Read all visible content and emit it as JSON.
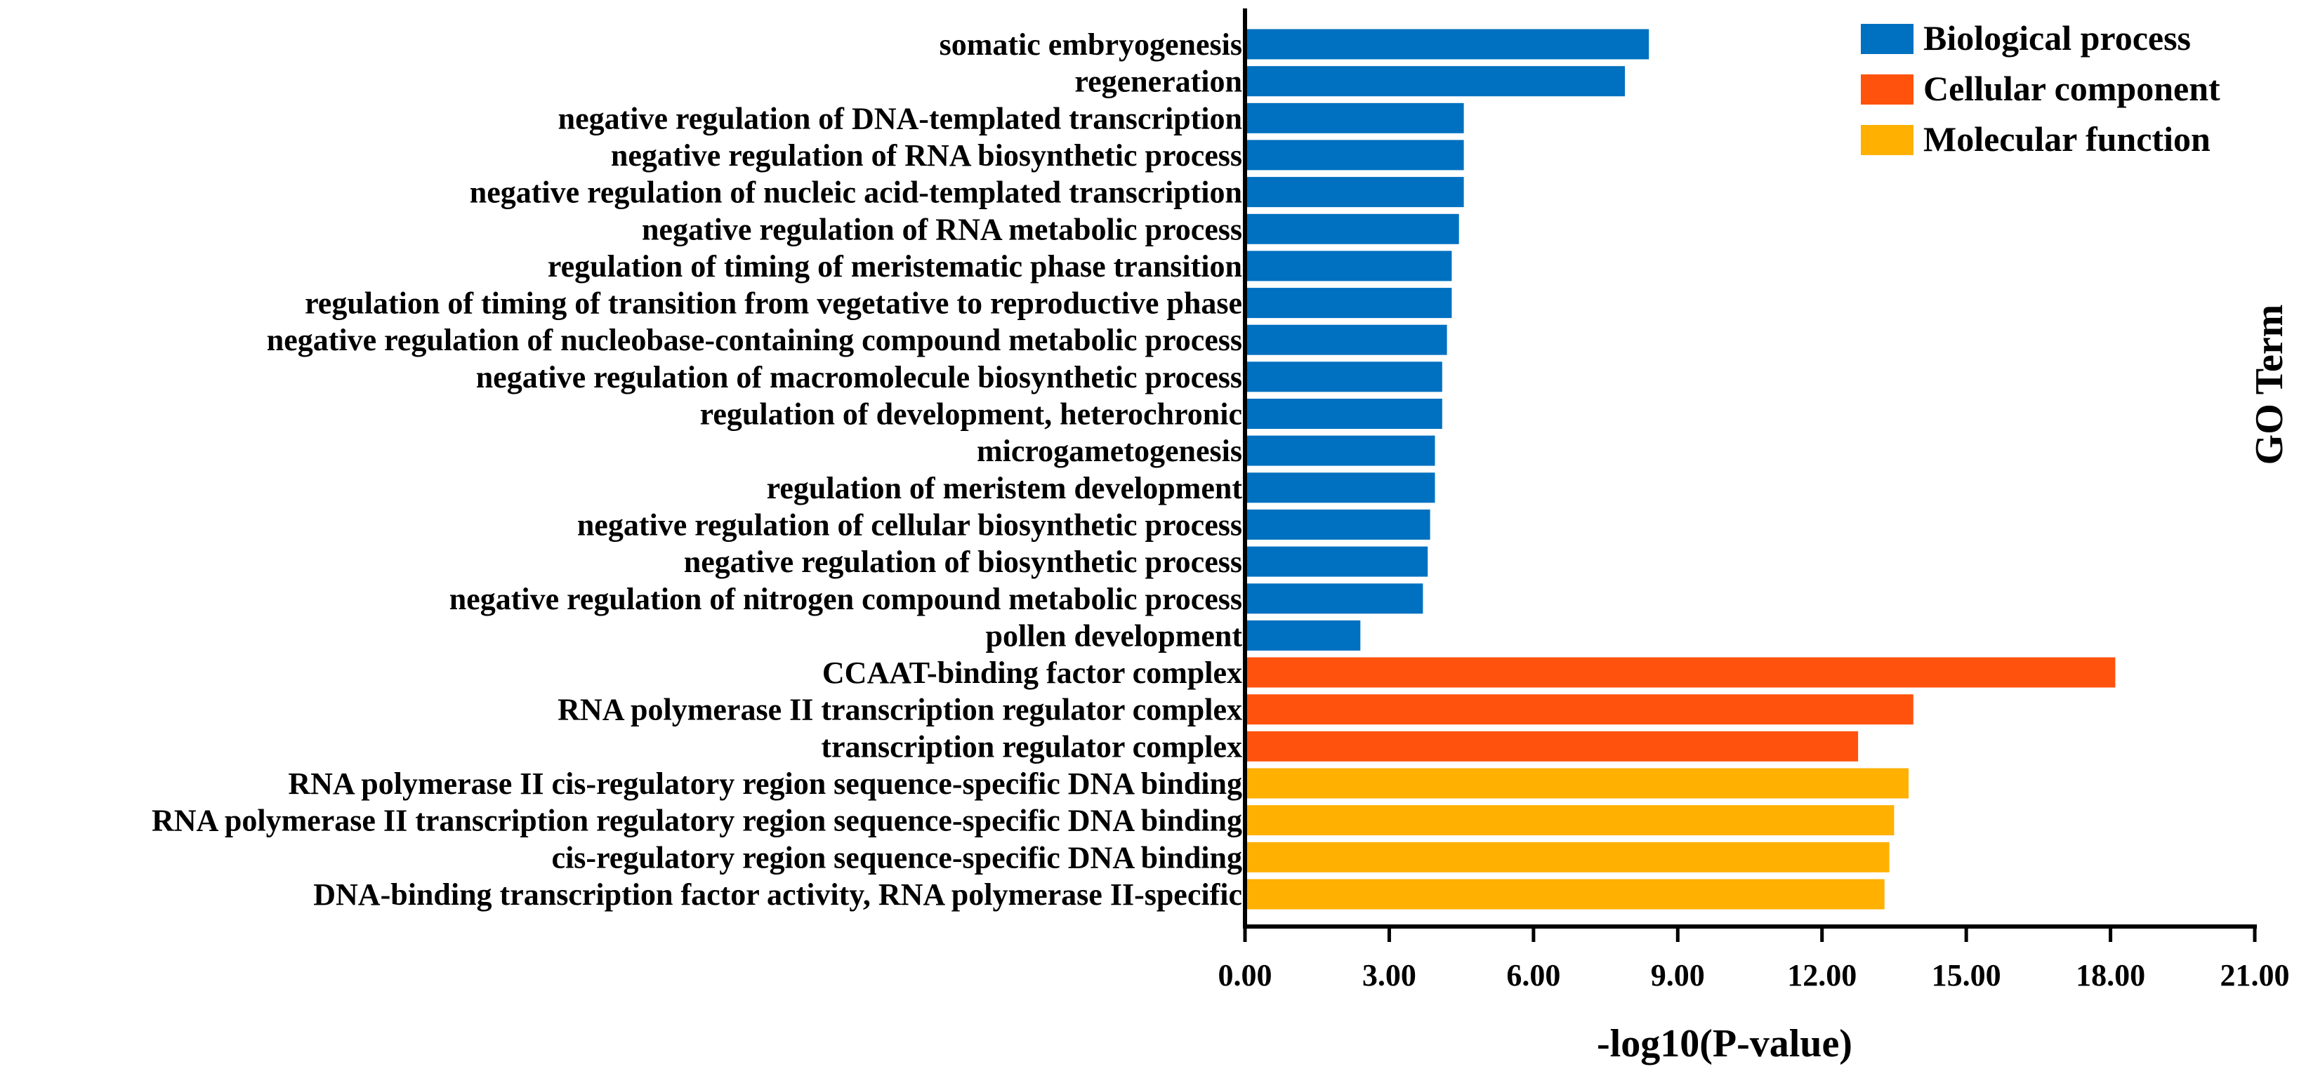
{
  "chart_data": {
    "type": "bar",
    "orientation": "horizontal",
    "xlabel": "-log10(P-value)",
    "ylabel": "GO Term",
    "xlim": [
      0,
      21
    ],
    "xticks": [
      0,
      3,
      6,
      9,
      12,
      15,
      18,
      21
    ],
    "xtick_labels": [
      "0.00",
      "3.00",
      "6.00",
      "9.00",
      "12.00",
      "15.00",
      "18.00",
      "21.00"
    ],
    "grid": false,
    "legend_position": "top-right",
    "legend": [
      {
        "name": "Biological process",
        "color": "#0070C0"
      },
      {
        "name": "Cellular component",
        "color": "#FF520D"
      },
      {
        "name": "Molecular function",
        "color": "#FFB000"
      }
    ],
    "categories": [
      "somatic embryogenesis",
      "regeneration",
      "negative regulation of DNA-templated transcription",
      "negative regulation of RNA biosynthetic process",
      "negative regulation of nucleic acid-templated transcription",
      "negative regulation of RNA metabolic process",
      "regulation of timing of meristematic phase transition",
      "regulation of timing of transition from vegetative to reproductive phase",
      "negative regulation of nucleobase-containing compound metabolic process",
      "negative regulation of macromolecule biosynthetic process",
      "regulation of development, heterochronic",
      "microgametogenesis",
      "regulation of meristem development",
      "negative regulation of cellular biosynthetic process",
      "negative regulation of biosynthetic process",
      "negative regulation of nitrogen compound metabolic process",
      "pollen development",
      "CCAAT-binding factor complex",
      "RNA polymerase II transcription regulator complex",
      "transcription regulator complex",
      "RNA polymerase II cis-regulatory region sequence-specific DNA binding",
      "RNA polymerase II transcription regulatory region sequence-specific DNA binding",
      "cis-regulatory region sequence-specific DNA binding",
      "DNA-binding transcription factor activity, RNA polymerase II-specific"
    ],
    "values": [
      8.4,
      7.9,
      4.55,
      4.55,
      4.55,
      4.45,
      4.3,
      4.3,
      4.2,
      4.1,
      4.1,
      3.95,
      3.95,
      3.85,
      3.8,
      3.7,
      2.4,
      18.1,
      13.9,
      12.75,
      13.8,
      13.5,
      13.4,
      13.3
    ],
    "groups": [
      "Biological process",
      "Biological process",
      "Biological process",
      "Biological process",
      "Biological process",
      "Biological process",
      "Biological process",
      "Biological process",
      "Biological process",
      "Biological process",
      "Biological process",
      "Biological process",
      "Biological process",
      "Biological process",
      "Biological process",
      "Biological process",
      "Biological process",
      "Cellular component",
      "Cellular component",
      "Cellular component",
      "Molecular function",
      "Molecular function",
      "Molecular function",
      "Molecular function"
    ]
  }
}
